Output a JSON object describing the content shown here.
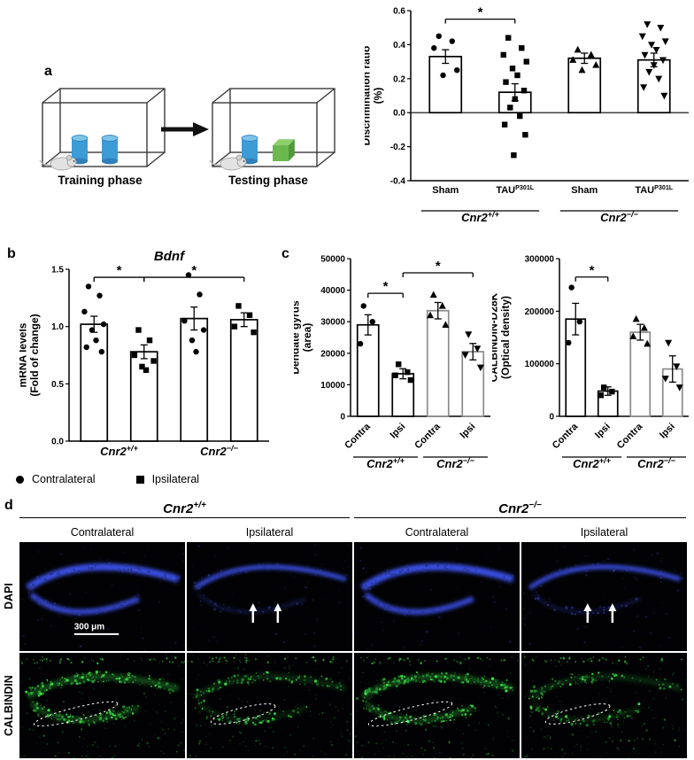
{
  "panels": {
    "a": {
      "label": "a",
      "training_label": "Training phase",
      "testing_label": "Testing phase"
    },
    "b": {
      "label": "b",
      "legend": [
        {
          "marker": "circle",
          "label": "Contralateral"
        },
        {
          "marker": "square",
          "label": "Ipsilateral"
        }
      ]
    },
    "c": {
      "label": "c"
    },
    "d": {
      "label": "d",
      "genotypes": [
        {
          "main": "Cnr2",
          "sup": "+/+"
        },
        {
          "main": "Cnr2",
          "sup": "−/−"
        }
      ],
      "column_labels": [
        "Contralateral",
        "Ipsilateral",
        "Contralateral",
        "Ipsilateral"
      ],
      "row_labels": [
        "DAPI",
        "CALBINDIN"
      ],
      "scale_bar": "300 μm",
      "images": [
        {
          "stain": "DAPI",
          "side": "Contralateral",
          "genotype": "Cnr2+/+",
          "variant": "contra",
          "scalebar": true
        },
        {
          "stain": "DAPI",
          "side": "Ipsilateral",
          "genotype": "Cnr2+/+",
          "variant": "ipsi",
          "arrows": true
        },
        {
          "stain": "DAPI",
          "side": "Contralateral",
          "genotype": "Cnr2−/−",
          "variant": "contra"
        },
        {
          "stain": "DAPI",
          "side": "Ipsilateral",
          "genotype": "Cnr2−/−",
          "variant": "ipsi",
          "arrows": true
        },
        {
          "stain": "CALBINDIN",
          "side": "Contralateral",
          "genotype": "Cnr2+/+",
          "variant": "contra",
          "outline": true
        },
        {
          "stain": "CALBINDIN",
          "side": "Ipsilateral",
          "genotype": "Cnr2+/+",
          "variant": "ipsi",
          "outline": true
        },
        {
          "stain": "CALBINDIN",
          "side": "Contralateral",
          "genotype": "Cnr2−/−",
          "variant": "contra",
          "outline": true
        },
        {
          "stain": "CALBINDIN",
          "side": "Ipsilateral",
          "genotype": "Cnr2−/−",
          "variant": "ipsi",
          "outline": true
        }
      ]
    }
  },
  "colors": {
    "dapi_blue": "#3d52f0",
    "calbindin_green": "#3fe24a",
    "cylinder_blue": "#3d9bd6",
    "cube_green": "#6cb84f",
    "gray_bar_edge": "#8a8a8a"
  },
  "chart_data": [
    {
      "id": "discrimination-ratio",
      "type": "bar",
      "title": "",
      "ylabel": "Discrimination ratio (%)",
      "ylabel_lines": [
        "Discrimination ratio",
        "(%)"
      ],
      "ylim": [
        -0.4,
        0.6
      ],
      "yticks": [
        -0.4,
        -0.2,
        0,
        0.2,
        0.4,
        0.6
      ],
      "ytick_labels": [
        "-0.4",
        "-0.2",
        "0.0",
        "0.2",
        "0.4",
        "0.6"
      ],
      "grid": false,
      "legend_position": "none",
      "categories": [
        {
          "text": "Sham",
          "sup": ""
        },
        {
          "text": "TAU",
          "sup": "P301L"
        },
        {
          "text": "Sham",
          "sup": ""
        },
        {
          "text": "TAU",
          "sup": "P301L"
        }
      ],
      "groups": [
        {
          "main": "Cnr2",
          "sup": "+/+",
          "from": 0,
          "to": 1
        },
        {
          "main": "Cnr2",
          "sup": "−/−",
          "from": 2,
          "to": 3
        }
      ],
      "series": [
        {
          "name": "mean",
          "values": [
            0.33,
            0.12,
            0.32,
            0.31
          ],
          "sem": [
            0.04,
            0.05,
            0.03,
            0.04
          ]
        }
      ],
      "points": [
        {
          "marker": "circle",
          "values": [
            0.45,
            0.42,
            0.38,
            0.25,
            0.22
          ]
        },
        {
          "marker": "square",
          "values": [
            0.44,
            0.38,
            0.34,
            0.3,
            0.26,
            0.22,
            0.18,
            0.13,
            0.08,
            0.03,
            -0.02,
            -0.07,
            -0.13,
            -0.25
          ]
        },
        {
          "marker": "triangle-up",
          "values": [
            0.37,
            0.34,
            0.31,
            0.28,
            0.25
          ]
        },
        {
          "marker": "triangle-down",
          "values": [
            0.52,
            0.5,
            0.45,
            0.42,
            0.4,
            0.37,
            0.34,
            0.31,
            0.28,
            0.24,
            0.2,
            0.15,
            0.1
          ]
        }
      ],
      "bar_edge_colors": [
        "#000000",
        "#000000",
        "#000000",
        "#000000"
      ],
      "significance": [
        {
          "from": 0,
          "to": 1,
          "y": 0.55,
          "label": "*"
        }
      ]
    },
    {
      "id": "bdnf-mrna",
      "type": "bar",
      "title": "Bdnf",
      "ylabel": "mRNA levels (Fold of change)",
      "ylabel_lines": [
        "mRNA levels",
        "(Fold of change)"
      ],
      "ylim": [
        0,
        1.5
      ],
      "yticks": [
        0,
        0.5,
        1,
        1.5
      ],
      "ytick_labels": [
        "0.0",
        "0.5",
        "1.0",
        "1.5"
      ],
      "grid": false,
      "legend_position": "below",
      "categories": [
        {
          "text": "",
          "sup": ""
        },
        {
          "text": "",
          "sup": ""
        },
        {
          "text": "",
          "sup": ""
        },
        {
          "text": "",
          "sup": ""
        }
      ],
      "groups": [
        {
          "main": "Cnr2",
          "sup": "+/+",
          "from": 0,
          "to": 1
        },
        {
          "main": "Cnr2",
          "sup": "−/−",
          "from": 2,
          "to": 3
        }
      ],
      "series": [
        {
          "name": "mean",
          "values": [
            1.02,
            0.78,
            1.07,
            1.06
          ],
          "sem": [
            0.07,
            0.06,
            0.1,
            0.06
          ]
        }
      ],
      "points": [
        {
          "marker": "circle",
          "values": [
            1.35,
            1.27,
            1.13,
            1.02,
            0.97,
            0.88,
            0.82,
            0.78
          ]
        },
        {
          "marker": "square",
          "values": [
            0.97,
            0.88,
            0.75,
            0.7,
            0.65,
            0.62
          ]
        },
        {
          "marker": "circle",
          "values": [
            1.45,
            1.28,
            1.05,
            0.97,
            0.88,
            0.78
          ]
        },
        {
          "marker": "square",
          "values": [
            1.18,
            1.1,
            1.0,
            0.95
          ]
        }
      ],
      "bar_edge_colors": [
        "#000000",
        "#000000",
        "#000000",
        "#000000"
      ],
      "significance": [
        {
          "from": 0,
          "to": 1,
          "y": 1.43,
          "label": "*"
        },
        {
          "from": 1,
          "to": 3,
          "y": 1.43,
          "label": "*"
        }
      ]
    },
    {
      "id": "dentate-gyrus-area",
      "type": "bar",
      "title": "",
      "ylabel": "Dendate gyrus (area)",
      "ylabel_lines": [
        "Dendate gyrus",
        "(area)"
      ],
      "ylim": [
        0,
        50000
      ],
      "yticks": [
        0,
        10000,
        20000,
        30000,
        40000,
        50000
      ],
      "ytick_labels": [
        "0",
        "10000",
        "20000",
        "30000",
        "40000",
        "50000"
      ],
      "grid": false,
      "legend_position": "none",
      "categories": [
        {
          "text": "Contra",
          "sup": ""
        },
        {
          "text": "Ipsi",
          "sup": ""
        },
        {
          "text": "Contra",
          "sup": ""
        },
        {
          "text": "Ipsi",
          "sup": ""
        }
      ],
      "groups": [
        {
          "main": "Cnr2",
          "sup": "+/+",
          "from": 0,
          "to": 1
        },
        {
          "main": "Cnr2",
          "sup": "−/−",
          "from": 2,
          "to": 3
        }
      ],
      "series": [
        {
          "name": "mean",
          "values": [
            29000,
            13500,
            33500,
            20500
          ],
          "sem": [
            3200,
            1600,
            2600,
            2600
          ]
        }
      ],
      "points": [
        {
          "marker": "circle",
          "values": [
            35000,
            30000,
            23000
          ]
        },
        {
          "marker": "square",
          "values": [
            16500,
            14000,
            13000,
            11500
          ]
        },
        {
          "marker": "triangle-up",
          "values": [
            38500,
            35000,
            32000,
            29000
          ]
        },
        {
          "marker": "triangle-down",
          "values": [
            26000,
            21500,
            19500,
            15500
          ]
        }
      ],
      "bar_edge_colors": [
        "#000000",
        "#000000",
        "#8a8a8a",
        "#8a8a8a"
      ],
      "significance": [
        {
          "from": 0,
          "to": 1,
          "y": 39000,
          "label": "*"
        },
        {
          "from": 1,
          "to": 3,
          "y": 45500,
          "label": "*"
        }
      ]
    },
    {
      "id": "calbindin-d28k",
      "type": "bar",
      "title": "",
      "ylabel": "CALBINDIN-D28K (Optical density)",
      "ylabel_lines": [
        "CALBINDIN-D28K",
        "(Optical density)"
      ],
      "ylim": [
        0,
        300000
      ],
      "yticks": [
        0,
        100000,
        200000,
        300000
      ],
      "ytick_labels": [
        "0",
        "100000",
        "200000",
        "300000"
      ],
      "grid": false,
      "legend_position": "none",
      "categories": [
        {
          "text": "Contra",
          "sup": ""
        },
        {
          "text": "Ipsi",
          "sup": ""
        },
        {
          "text": "Contra",
          "sup": ""
        },
        {
          "text": "Ipsi",
          "sup": ""
        }
      ],
      "groups": [
        {
          "main": "Cnr2",
          "sup": "+/+",
          "from": 0,
          "to": 1
        },
        {
          "main": "Cnr2",
          "sup": "−/−",
          "from": 2,
          "to": 3
        }
      ],
      "series": [
        {
          "name": "mean",
          "values": [
            185000,
            48000,
            160000,
            90000
          ],
          "sem": [
            30000,
            8000,
            15000,
            25000
          ]
        }
      ],
      "points": [
        {
          "marker": "circle",
          "values": [
            245000,
            180000,
            140000
          ]
        },
        {
          "marker": "square",
          "values": [
            55000,
            47000,
            40000
          ]
        },
        {
          "marker": "triangle-up",
          "values": [
            185000,
            168000,
            152000,
            138000
          ]
        },
        {
          "marker": "triangle-down",
          "values": [
            140000,
            95000,
            72000,
            55000
          ]
        }
      ],
      "bar_edge_colors": [
        "#000000",
        "#000000",
        "#8a8a8a",
        "#8a8a8a"
      ],
      "significance": [
        {
          "from": 0,
          "to": 1,
          "y": 265000,
          "label": "*"
        }
      ]
    }
  ]
}
